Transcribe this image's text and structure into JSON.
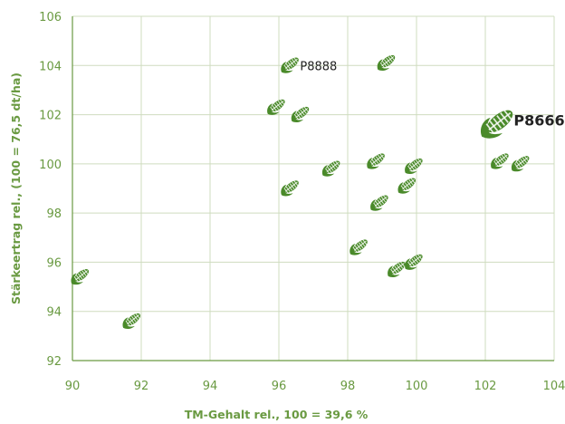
{
  "chart_data": {
    "type": "scatter",
    "xlabel": "TM-Gehalt rel., 100 = 39,6 %",
    "ylabel": "Stärkeertrag rel., (100 = 76,5 dt/ha)",
    "xlim": [
      90,
      104
    ],
    "ylim": [
      92,
      106
    ],
    "x_ticks": [
      "90",
      "92",
      "94",
      "96",
      "98",
      "100",
      "102",
      "104"
    ],
    "y_ticks": [
      "92",
      "94",
      "96",
      "98",
      "100",
      "102",
      "104",
      "106"
    ],
    "grid": true,
    "marker": "corn-cob-icon",
    "color": "#4a8a2a",
    "points": [
      {
        "x": 90.2,
        "y": 95.4
      },
      {
        "x": 91.7,
        "y": 93.6
      },
      {
        "x": 96.3,
        "y": 104.0,
        "label": "P8888"
      },
      {
        "x": 99.1,
        "y": 104.1
      },
      {
        "x": 95.9,
        "y": 102.3
      },
      {
        "x": 96.6,
        "y": 102.0
      },
      {
        "x": 102.3,
        "y": 101.6,
        "label": "P8666"
      },
      {
        "x": 96.3,
        "y": 99.0
      },
      {
        "x": 97.5,
        "y": 99.8
      },
      {
        "x": 98.8,
        "y": 100.1
      },
      {
        "x": 99.9,
        "y": 99.9
      },
      {
        "x": 98.9,
        "y": 98.4
      },
      {
        "x": 99.7,
        "y": 99.1
      },
      {
        "x": 102.4,
        "y": 100.1
      },
      {
        "x": 103.0,
        "y": 100.0
      },
      {
        "x": 98.3,
        "y": 96.6
      },
      {
        "x": 99.4,
        "y": 95.7
      },
      {
        "x": 99.9,
        "y": 96.0
      }
    ]
  }
}
